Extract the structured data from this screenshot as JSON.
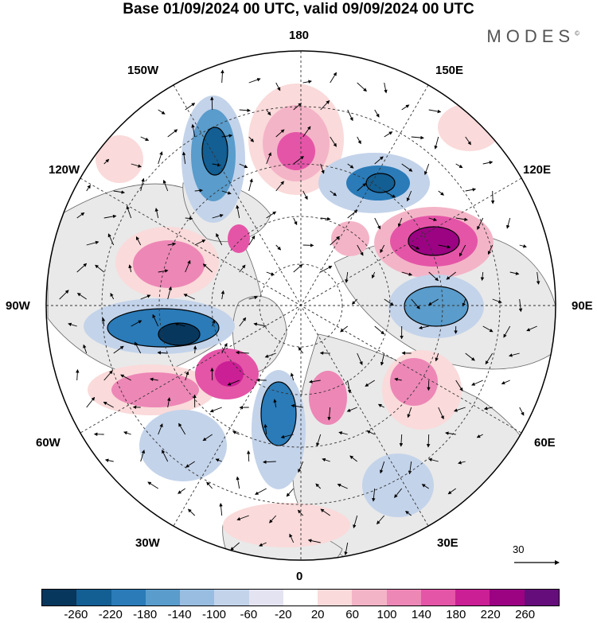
{
  "header": {
    "title": "Base 01/09/2024 00 UTC, valid 09/09/2024 00 UTC",
    "brand": "MODES",
    "brand_mark": "©"
  },
  "map": {
    "projection": "north polar stereographic",
    "longitude_labels": {
      "top": "180",
      "top_left": "150W",
      "top_right": "150E",
      "upper_left": "120W",
      "upper_right": "120E",
      "left": "90W",
      "right": "90E",
      "lower_left": "60W",
      "lower_right": "60E",
      "bottom_left": "30W",
      "bottom_right": "30E",
      "bottom": "0"
    },
    "reference_vector_label": "30",
    "land_color": "#e9e9e9",
    "ocean_color": "#ffffff"
  },
  "colorbar": {
    "colors": [
      "#08375d",
      "#135e92",
      "#2a7bb8",
      "#5a9ccb",
      "#98bde0",
      "#c3d3ea",
      "#e4e3f1",
      "#ffffff",
      "#fadada",
      "#f4b4c7",
      "#ed87b6",
      "#e455a7",
      "#ca1f95",
      "#9b0383",
      "#650d7a"
    ],
    "tick_labels": [
      "-260",
      "-220",
      "-180",
      "-140",
      "-100",
      "-60",
      "-20",
      "20",
      "60",
      "100",
      "140",
      "180",
      "220",
      "260"
    ]
  }
}
